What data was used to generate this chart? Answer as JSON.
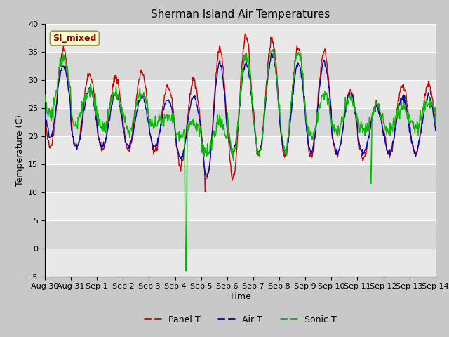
{
  "title": "Sherman Island Air Temperatures",
  "xlabel": "Time",
  "ylabel": "Temperature (C)",
  "ylim": [
    -5,
    40
  ],
  "tick_labels": [
    "Aug 30",
    "Aug 31",
    "Sep 1",
    "Sep 2",
    "Sep 3",
    "Sep 4",
    "Sep 5",
    "Sep 6",
    "Sep 7",
    "Sep 8",
    "Sep 9",
    "Sep 10",
    "Sep 11",
    "Sep 12",
    "Sep 13",
    "Sep 14"
  ],
  "annotation_text": "SI_mixed",
  "annotation_color": "#8B0000",
  "annotation_bg": "#FFFFCC",
  "fig_bg_color": "#C8C8C8",
  "plot_bg_color": "#E8E8E8",
  "band_color": "#D8D8D8",
  "grid_color": "#FFFFFF",
  "line_colors": {
    "panel": "#CC0000",
    "air": "#0000BB",
    "sonic": "#00BB00"
  },
  "legend_labels": [
    "Panel T",
    "Air T",
    "Sonic T"
  ],
  "title_fontsize": 11,
  "label_fontsize": 9,
  "tick_fontsize": 8,
  "legend_fontsize": 9
}
